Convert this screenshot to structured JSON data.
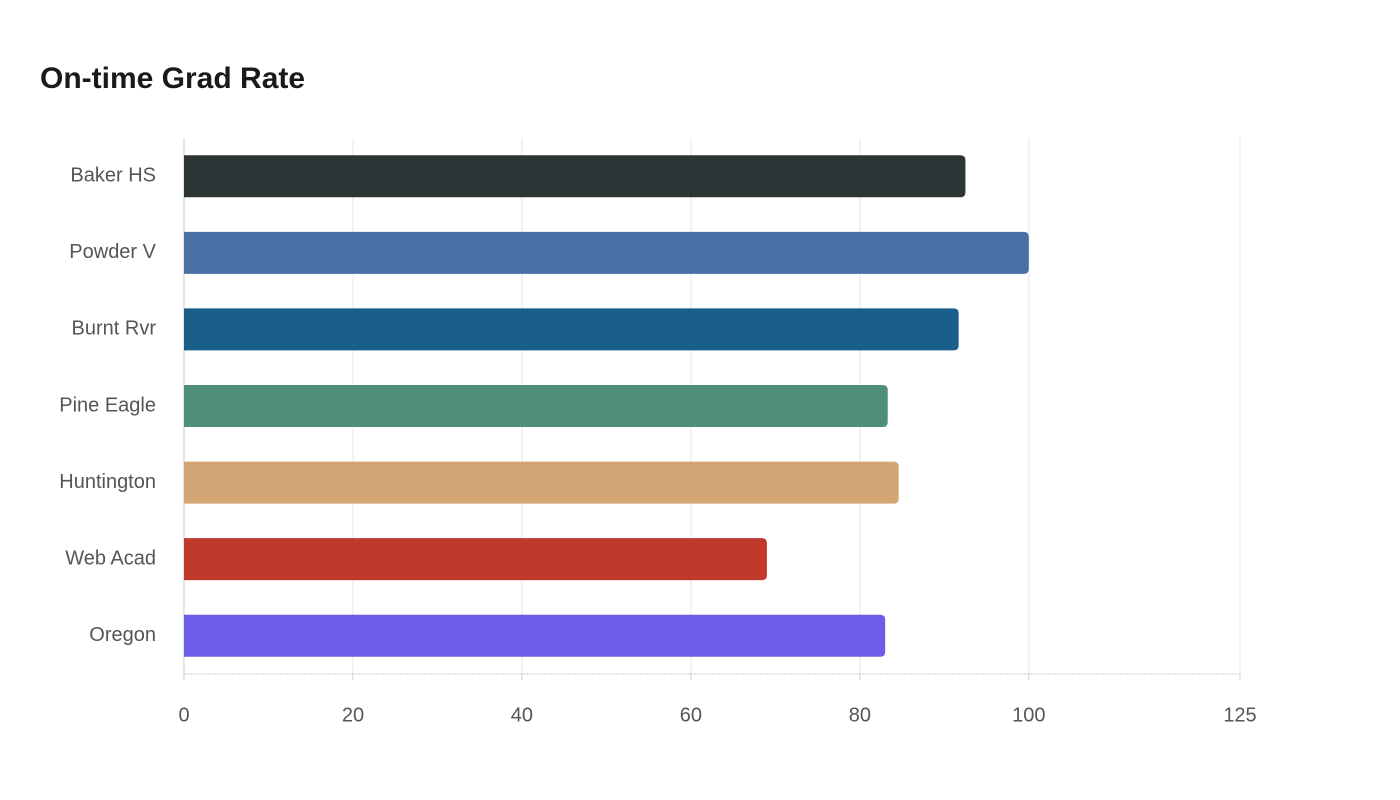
{
  "chart_data": {
    "type": "bar",
    "orientation": "horizontal",
    "title": "On-time Grad Rate",
    "categories": [
      "Baker HS",
      "Powder V",
      "Burnt Rvr",
      "Pine Eagle",
      "Huntington",
      "Web Acad",
      "Oregon"
    ],
    "values": [
      92.5,
      100,
      91.7,
      83.3,
      84.6,
      69,
      83
    ],
    "colors": [
      "#2d3436",
      "#4a6fa5",
      "#1a5f8a",
      "#4f8e7b",
      "#d4a574",
      "#c0392b",
      "#6c5ce7"
    ],
    "xlim": [
      0,
      125
    ],
    "xticks": [
      0,
      20,
      40,
      60,
      80,
      100,
      125
    ],
    "grid": true
  }
}
